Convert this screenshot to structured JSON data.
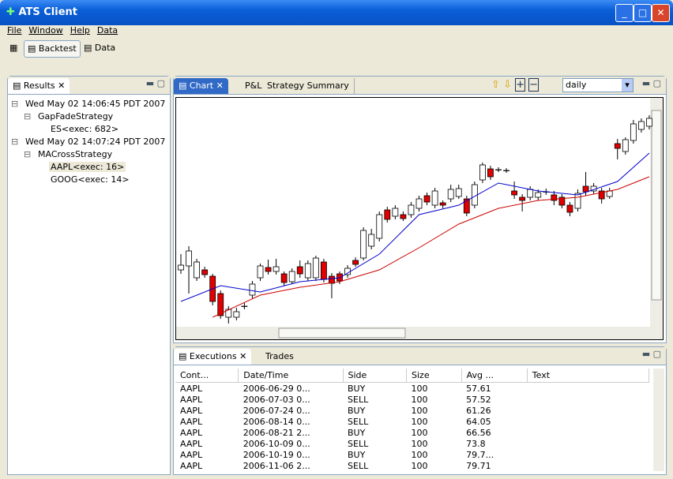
{
  "window": {
    "title": "ATS Client"
  },
  "menu": [
    "File",
    "Window",
    "Help",
    "Data"
  ],
  "toolbar": [
    "Backtest",
    "Data"
  ],
  "results": {
    "title": "Results",
    "tree": [
      {
        "label": "Wed May 02 14:06:45 PDT 2007",
        "children": [
          {
            "label": "GapFadeStrategy",
            "children": [
              {
                "label": "ES<exec: 682>"
              }
            ]
          }
        ]
      },
      {
        "label": "Wed May 02 14:07:24 PDT 2007",
        "children": [
          {
            "label": "MACrossStrategy",
            "children": [
              {
                "label": "AAPL<exec: 16>"
              },
              {
                "label": "GOOG<exec: 14>"
              }
            ]
          }
        ]
      }
    ]
  },
  "chart": {
    "tabs": [
      "Chart",
      "P&L",
      "Strategy Summary"
    ],
    "period": "daily",
    "ylim": [
      0,
      288
    ],
    "up_color": "#ffffff",
    "down_color": "#e00000",
    "candles": {
      "open": [
        72,
        77,
        62,
        72,
        64,
        42,
        12,
        12,
        26,
        40,
        62,
        75,
        70,
        67,
        57,
        76,
        62,
        62,
        82,
        64,
        67,
        66,
        84,
        87,
        102,
        112,
        148,
        140,
        142,
        142,
        150,
        166,
        154,
        157,
        162,
        165,
        162,
        154,
        186,
        200,
        199,
        198,
        172,
        164,
        164,
        164,
        171,
        167,
        164,
        154,
        150,
        178,
        172,
        172,
        165,
        232,
        222,
        236,
        250,
        254
      ],
      "high": [
        92,
        102,
        86,
        76,
        67,
        46,
        26,
        24,
        30,
        58,
        80,
        85,
        86,
        70,
        74,
        84,
        84,
        90,
        86,
        68,
        70,
        78,
        88,
        126,
        124,
        146,
        152,
        154,
        146,
        158,
        166,
        170,
        176,
        160,
        180,
        180,
        166,
        184,
        208,
        204,
        202,
        201,
        184,
        168,
        178,
        174,
        175,
        172,
        168,
        158,
        174,
        196,
        182,
        176,
        176,
        238,
        240,
        262,
        264,
        268
      ],
      "low": [
        67,
        42,
        58,
        62,
        27,
        10,
        4,
        8,
        22,
        36,
        58,
        66,
        66,
        52,
        54,
        62,
        58,
        58,
        56,
        36,
        54,
        62,
        76,
        84,
        98,
        108,
        132,
        136,
        134,
        138,
        146,
        154,
        150,
        150,
        158,
        162,
        140,
        150,
        182,
        186,
        196,
        195,
        162,
        146,
        160,
        160,
        167,
        154,
        150,
        140,
        146,
        166,
        168,
        156,
        162,
        212,
        218,
        232,
        246,
        250
      ],
      "close": [
        78,
        96,
        82,
        66,
        32,
        14,
        22,
        19,
        26,
        54,
        77,
        70,
        76,
        56,
        70,
        67,
        80,
        87,
        60,
        55,
        58,
        74,
        79,
        122,
        117,
        142,
        136,
        150,
        137,
        154,
        162,
        158,
        172,
        154,
        174,
        175,
        144,
        180,
        205,
        190,
        199,
        198,
        167,
        160,
        174,
        170,
        171,
        160,
        154,
        145,
        169,
        171,
        178,
        162,
        172,
        226,
        237,
        257,
        260,
        264
      ]
    },
    "lines": [
      {
        "color": "#0000cc",
        "x": [
          0,
          5,
          10,
          15,
          20,
          25,
          30,
          35,
          40,
          45,
          50,
          55,
          59
        ],
        "values": [
          32,
          52,
          44,
          57,
          62,
          92,
          142,
          154,
          182,
          172,
          167,
          184,
          220
        ]
      },
      {
        "color": "#cc0000",
        "x": [
          4,
          10,
          15,
          20,
          25,
          30,
          35,
          40,
          45,
          50,
          55,
          59
        ],
        "values": [
          12,
          40,
          50,
          57,
          72,
          100,
          130,
          150,
          160,
          164,
          174,
          190
        ]
      }
    ]
  },
  "executions": {
    "tabs": [
      "Executions",
      "Trades"
    ],
    "columns": [
      "Cont...",
      "Date/Time",
      "Side",
      "Size",
      "Avg ...",
      "Text"
    ],
    "rows": [
      [
        "AAPL",
        "2006-06-29 0...",
        "BUY",
        "100",
        "57.61"
      ],
      [
        "AAPL",
        "2006-07-03 0...",
        "SELL",
        "100",
        "57.52"
      ],
      [
        "AAPL",
        "2006-07-24 0...",
        "BUY",
        "100",
        "61.26"
      ],
      [
        "AAPL",
        "2006-08-14 0...",
        "SELL",
        "100",
        "64.05"
      ],
      [
        "AAPL",
        "2006-08-21 2...",
        "BUY",
        "100",
        "66.56"
      ],
      [
        "AAPL",
        "2006-10-09 0...",
        "SELL",
        "100",
        "73.8"
      ],
      [
        "AAPL",
        "2006-10-19 0...",
        "BUY",
        "100",
        "79.7..."
      ],
      [
        "AAPL",
        "2006-11-06 2...",
        "SELL",
        "100",
        "79.71"
      ]
    ]
  }
}
